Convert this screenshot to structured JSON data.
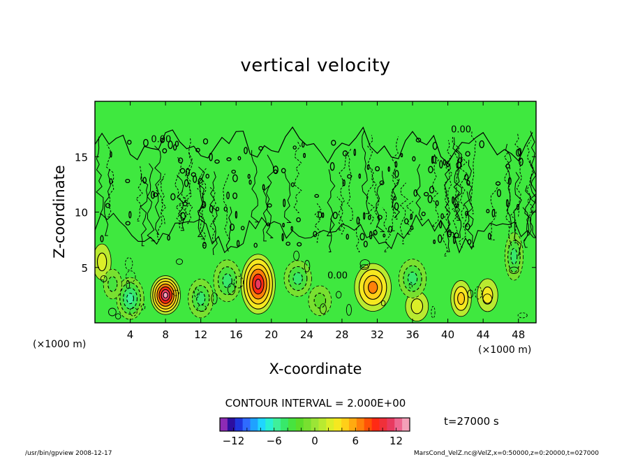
{
  "chart_data": {
    "type": "heatmap",
    "title": "vertical velocity",
    "xlabel": "X-coordinate",
    "ylabel": "Z-coordinate",
    "x_unit_left": "(×1000 m)",
    "x_unit_right": "(×1000 m)",
    "xlim": [
      0,
      50
    ],
    "ylim": [
      0,
      20
    ],
    "x_ticks": [
      4,
      8,
      12,
      16,
      20,
      24,
      28,
      32,
      36,
      40,
      44,
      48
    ],
    "y_ticks": [
      5,
      10,
      15
    ],
    "contour_labels": [
      {
        "text": "0.00",
        "x": 7.5,
        "y": 16.3
      },
      {
        "text": "0.00",
        "x": 41.5,
        "y": 17.2
      },
      {
        "text": "0.00",
        "x": 27.5,
        "y": 4.0
      }
    ],
    "cells": [
      {
        "x": 8,
        "z": 2.5,
        "sx": 1.3,
        "sz": 1.3,
        "w": 13
      },
      {
        "x": 18.5,
        "z": 3.5,
        "sx": 1.5,
        "sz": 2.0,
        "w": 11
      },
      {
        "x": 31.5,
        "z": 3.2,
        "sx": 1.6,
        "sz": 1.6,
        "w": 7
      },
      {
        "x": 41.5,
        "z": 2.2,
        "sx": 0.9,
        "sz": 1.2,
        "w": 5
      },
      {
        "x": 44.5,
        "z": 2.5,
        "sx": 0.9,
        "sz": 1.1,
        "w": 3
      },
      {
        "x": 0.8,
        "z": 5.5,
        "sx": 0.8,
        "sz": 1.2,
        "w": 2
      },
      {
        "x": 36.5,
        "z": 1.5,
        "sx": 1.0,
        "sz": 1.0,
        "w": 2
      },
      {
        "x": 4,
        "z": 2.2,
        "sx": 1.2,
        "sz": 1.4,
        "w": -6
      },
      {
        "x": 12,
        "z": 2.2,
        "sx": 1.1,
        "sz": 1.3,
        "w": -5
      },
      {
        "x": 15,
        "z": 3.8,
        "sx": 1.2,
        "sz": 1.4,
        "w": -5
      },
      {
        "x": 23,
        "z": 4.0,
        "sx": 1.2,
        "sz": 1.2,
        "w": -4
      },
      {
        "x": 36,
        "z": 4.0,
        "sx": 1.2,
        "sz": 1.3,
        "w": -4
      },
      {
        "x": 47.5,
        "z": 6.0,
        "sx": 0.8,
        "sz": 1.6,
        "w": -4
      },
      {
        "x": 2,
        "z": 3.5,
        "sx": 0.8,
        "sz": 1.0,
        "w": -3
      },
      {
        "x": 25.5,
        "z": 2.0,
        "sx": 1.0,
        "sz": 1.0,
        "w": -2
      }
    ],
    "colorbar": {
      "min": -14,
      "max": 14,
      "interval": 2,
      "ticks": [
        -12,
        -6,
        0,
        6,
        12
      ],
      "tick_labels": [
        "−12",
        "−6",
        "0",
        "6",
        "12"
      ],
      "colors": [
        "#8d2bb5",
        "#2c0ea0",
        "#1f35dd",
        "#2f6bff",
        "#1fa2ff",
        "#1fd6ff",
        "#29f0d2",
        "#3ff09a",
        "#38e86a",
        "#47e33f",
        "#5bdd2a",
        "#78e030",
        "#9be536",
        "#b9ea30",
        "#dbee28",
        "#f5e820",
        "#ffcf18",
        "#ffaa10",
        "#ff800a",
        "#ff5206",
        "#ff2a14",
        "#f0303a",
        "#e83a60",
        "#ee6790",
        "#f4a0b8"
      ]
    },
    "colormap": "rainbow"
  },
  "labels": {
    "contour_interval": "CONTOUR INTERVAL = 2.000E+00",
    "time": "t=27000  s",
    "footer_left": "/usr/bin/gpview   2008-12-17",
    "footer_right": "MarsCond_VelZ.nc@VelZ,x=0:50000,z=0:20000,t=027000"
  }
}
